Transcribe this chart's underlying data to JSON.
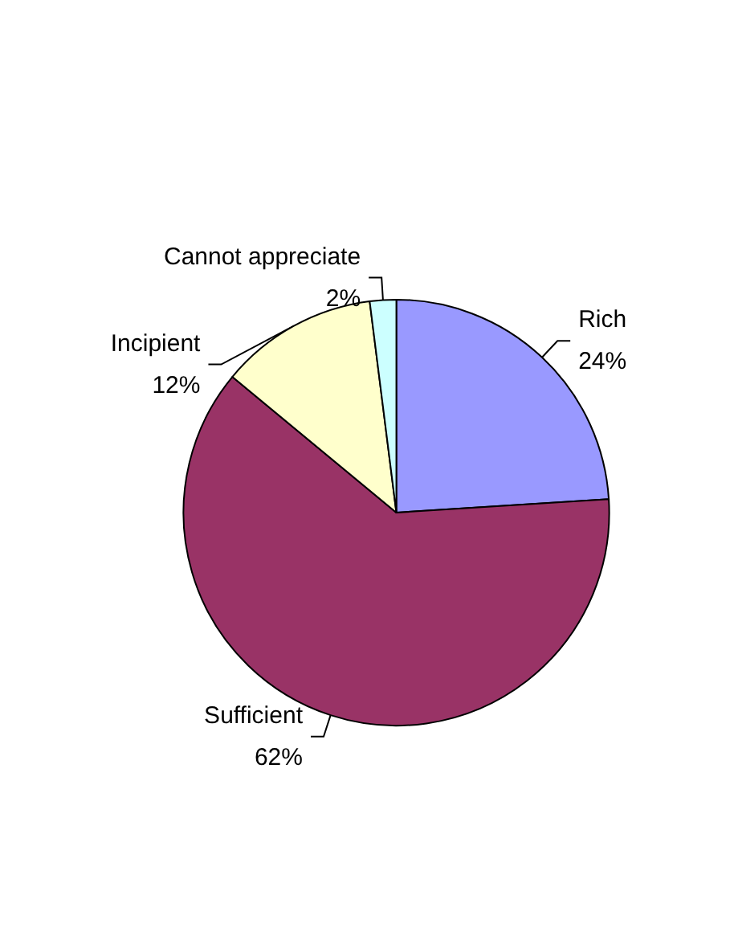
{
  "chart_data": {
    "type": "pie",
    "categories": [
      "Rich",
      "Sufficient",
      "Incipient",
      "Cannot appreciate"
    ],
    "values": [
      24,
      62,
      12,
      2
    ],
    "colors": [
      "#9999ff",
      "#993366",
      "#ffffcc",
      "#ccffff"
    ],
    "value_labels": [
      "24%",
      "62%",
      "12%",
      "2%"
    ],
    "legend": false
  }
}
